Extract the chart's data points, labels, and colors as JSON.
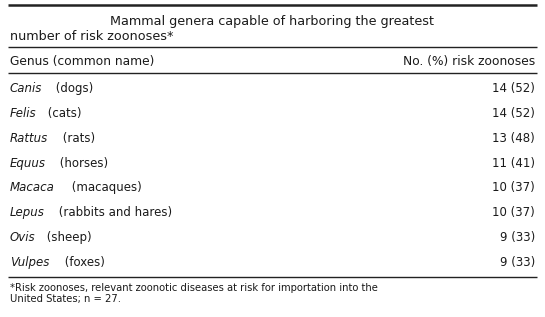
{
  "title_line1": "Mammal genera capable of harboring the greatest",
  "title_line2": "number of risk zoonoses*",
  "col1_header": "Genus (common name)",
  "col2_header": "No. (%) risk zoonoses",
  "rows": [
    {
      "genus_italic": "Canis",
      "genus_rest": " (dogs)",
      "value": "14 (52)"
    },
    {
      "genus_italic": "Felis",
      "genus_rest": " (cats)",
      "value": "14 (52)"
    },
    {
      "genus_italic": "Rattus",
      "genus_rest": " (rats)",
      "value": "13 (48)"
    },
    {
      "genus_italic": "Equus",
      "genus_rest": " (horses)",
      "value": "11 (41)"
    },
    {
      "genus_italic": "Macaca",
      "genus_rest": " (macaques)",
      "value": "10 (37)"
    },
    {
      "genus_italic": "Lepus",
      "genus_rest": " (rabbits and hares)",
      "value": "10 (37)"
    },
    {
      "genus_italic": "Ovis",
      "genus_rest": " (sheep)",
      "value": "9 (33)"
    },
    {
      "genus_italic": "Vulpes",
      "genus_rest": " (foxes)",
      "value": "9 (33)"
    }
  ],
  "footnote_line1": "*Risk zoonoses, relevant zoonotic diseases at risk for importation into the",
  "footnote_line2": "United States; n = 27.",
  "bg_color": "#ffffff",
  "text_color": "#1a1a1a",
  "line_color": "#222222",
  "font_size_title": 9.2,
  "font_size_header": 8.8,
  "font_size_row": 8.5,
  "font_size_footnote": 7.2
}
